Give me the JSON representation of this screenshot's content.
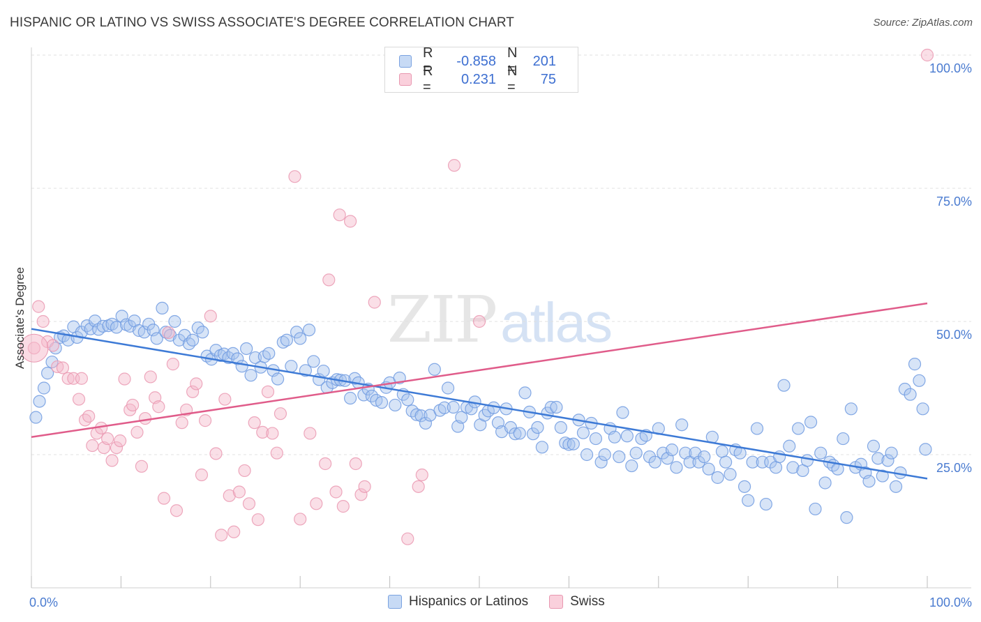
{
  "header": {
    "title": "HISPANIC OR LATINO VS SWISS ASSOCIATE'S DEGREE CORRELATION CHART",
    "source": "Source: ZipAtlas.com"
  },
  "watermark": {
    "zip": "ZIP",
    "atlas": "atlas"
  },
  "legend": {
    "rows": [
      {
        "r_label": "R =",
        "r_value": "-0.858",
        "n_label": "N =",
        "n_value": "201",
        "color": "#a7c4ee"
      },
      {
        "r_label": "R =",
        "r_value": "0.231",
        "n_label": "N =",
        "n_value": "75",
        "color": "#f5b8c9"
      }
    ]
  },
  "bottom_legend": {
    "series1": "Hispanics or Latinos",
    "series2": "Swiss"
  },
  "axes": {
    "ylabel": "Associate's Degree",
    "x_min_label": "0.0%",
    "x_max_label": "100.0%",
    "y_tick_labels": [
      "25.0%",
      "50.0%",
      "75.0%",
      "100.0%"
    ]
  },
  "colors": {
    "blue": "#3d7ad6",
    "blue_fill": "#a7c4ee",
    "pink": "#e05c8a",
    "pink_fill": "#f5b8c9",
    "grid": "#e0e0e0",
    "tick_text": "#4a7bd0"
  },
  "chart_data": {
    "type": "scatter",
    "xlim": [
      0,
      100
    ],
    "ylim": [
      0,
      100
    ],
    "grid": true,
    "legend_position": "top-center",
    "series": [
      {
        "name": "Hispanics or Latinos",
        "color": "#3d7ad6",
        "trend": {
          "x": [
            0,
            100
          ],
          "y": [
            48.6,
            20.5
          ]
        },
        "points": [
          [
            0.5,
            32.0
          ],
          [
            0.9,
            35.0
          ],
          [
            1.4,
            37.5
          ],
          [
            1.8,
            40.3
          ],
          [
            2.3,
            42.4
          ],
          [
            2.7,
            45.0
          ],
          [
            3.2,
            47.0
          ],
          [
            3.6,
            47.3
          ],
          [
            4.1,
            46.5
          ],
          [
            4.7,
            49.0
          ],
          [
            5.1,
            47.0
          ],
          [
            5.6,
            48.0
          ],
          [
            6.2,
            49.2
          ],
          [
            6.6,
            48.6
          ],
          [
            7.1,
            50.1
          ],
          [
            7.5,
            48.5
          ],
          [
            8.0,
            49.1
          ],
          [
            8.6,
            49.2
          ],
          [
            9.0,
            49.5
          ],
          [
            9.5,
            48.9
          ],
          [
            10.1,
            51.0
          ],
          [
            10.6,
            49.4
          ],
          [
            11.0,
            49.1
          ],
          [
            11.5,
            50.1
          ],
          [
            12.0,
            48.3
          ],
          [
            12.6,
            48.0
          ],
          [
            13.1,
            49.5
          ],
          [
            13.6,
            48.4
          ],
          [
            14.0,
            46.8
          ],
          [
            14.6,
            52.5
          ],
          [
            15.0,
            48.0
          ],
          [
            15.5,
            47.4
          ],
          [
            16.0,
            50.0
          ],
          [
            16.5,
            46.5
          ],
          [
            17.1,
            47.4
          ],
          [
            17.6,
            45.8
          ],
          [
            18.0,
            46.5
          ],
          [
            18.6,
            48.8
          ],
          [
            19.1,
            48.0
          ],
          [
            19.6,
            43.5
          ],
          [
            20.1,
            42.9
          ],
          [
            20.6,
            44.6
          ],
          [
            21.1,
            43.6
          ],
          [
            21.5,
            43.9
          ],
          [
            22.0,
            43.2
          ],
          [
            22.5,
            44.0
          ],
          [
            23.0,
            43.0
          ],
          [
            23.5,
            41.6
          ],
          [
            24.0,
            44.9
          ],
          [
            24.5,
            39.9
          ],
          [
            25.0,
            43.2
          ],
          [
            25.6,
            41.4
          ],
          [
            26.0,
            43.4
          ],
          [
            26.5,
            44.0
          ],
          [
            27.0,
            40.8
          ],
          [
            27.5,
            39.2
          ],
          [
            28.1,
            46.1
          ],
          [
            28.5,
            46.5
          ],
          [
            29.0,
            41.6
          ],
          [
            29.6,
            48.0
          ],
          [
            30.0,
            46.8
          ],
          [
            30.6,
            40.8
          ],
          [
            31.0,
            48.4
          ],
          [
            31.5,
            42.5
          ],
          [
            32.1,
            39.1
          ],
          [
            32.6,
            40.7
          ],
          [
            33.0,
            37.6
          ],
          [
            33.6,
            38.5
          ],
          [
            34.1,
            39.1
          ],
          [
            34.5,
            39.0
          ],
          [
            35.0,
            38.9
          ],
          [
            35.6,
            35.6
          ],
          [
            36.1,
            39.3
          ],
          [
            36.5,
            38.5
          ],
          [
            37.1,
            36.2
          ],
          [
            37.6,
            37.3
          ],
          [
            38.0,
            36.0
          ],
          [
            38.5,
            35.2
          ],
          [
            39.1,
            34.8
          ],
          [
            39.6,
            37.6
          ],
          [
            40.0,
            38.5
          ],
          [
            40.6,
            34.3
          ],
          [
            41.1,
            39.4
          ],
          [
            41.5,
            36.3
          ],
          [
            42.0,
            35.3
          ],
          [
            42.5,
            33.2
          ],
          [
            43.0,
            32.5
          ],
          [
            43.5,
            32.3
          ],
          [
            44.0,
            30.9
          ],
          [
            44.5,
            32.4
          ],
          [
            45.0,
            41.0
          ],
          [
            45.6,
            33.3
          ],
          [
            46.1,
            33.8
          ],
          [
            46.5,
            37.5
          ],
          [
            47.1,
            33.9
          ],
          [
            47.6,
            30.3
          ],
          [
            48.0,
            32.0
          ],
          [
            48.6,
            33.9
          ],
          [
            49.1,
            33.6
          ],
          [
            49.5,
            34.9
          ],
          [
            50.1,
            30.6
          ],
          [
            50.6,
            32.4
          ],
          [
            51.0,
            33.2
          ],
          [
            51.6,
            33.8
          ],
          [
            52.1,
            31.0
          ],
          [
            52.5,
            29.3
          ],
          [
            53.0,
            33.6
          ],
          [
            53.5,
            30.1
          ],
          [
            54.0,
            28.9
          ],
          [
            54.5,
            29.0
          ],
          [
            55.1,
            36.6
          ],
          [
            55.6,
            33.0
          ],
          [
            56.0,
            28.9
          ],
          [
            56.5,
            30.1
          ],
          [
            57.0,
            26.4
          ],
          [
            57.6,
            32.8
          ],
          [
            58.0,
            33.9
          ],
          [
            58.6,
            33.9
          ],
          [
            59.1,
            30.1
          ],
          [
            59.6,
            27.2
          ],
          [
            60.0,
            26.9
          ],
          [
            60.5,
            27.0
          ],
          [
            61.1,
            31.5
          ],
          [
            61.6,
            29.1
          ],
          [
            62.0,
            25.0
          ],
          [
            62.5,
            30.9
          ],
          [
            63.0,
            28.0
          ],
          [
            63.6,
            23.6
          ],
          [
            64.0,
            25.0
          ],
          [
            64.6,
            29.9
          ],
          [
            65.1,
            28.3
          ],
          [
            65.6,
            24.6
          ],
          [
            66.0,
            32.9
          ],
          [
            66.5,
            28.5
          ],
          [
            67.0,
            22.9
          ],
          [
            67.5,
            25.3
          ],
          [
            68.1,
            28.0
          ],
          [
            68.6,
            28.6
          ],
          [
            69.0,
            24.6
          ],
          [
            69.6,
            23.6
          ],
          [
            70.0,
            29.9
          ],
          [
            70.5,
            25.3
          ],
          [
            71.0,
            24.3
          ],
          [
            71.5,
            25.9
          ],
          [
            72.0,
            22.6
          ],
          [
            72.6,
            30.6
          ],
          [
            73.0,
            25.3
          ],
          [
            73.5,
            23.6
          ],
          [
            74.1,
            25.3
          ],
          [
            74.5,
            23.6
          ],
          [
            75.1,
            24.6
          ],
          [
            75.6,
            22.3
          ],
          [
            76.0,
            28.3
          ],
          [
            76.6,
            20.7
          ],
          [
            77.1,
            25.6
          ],
          [
            77.5,
            23.6
          ],
          [
            78.0,
            21.3
          ],
          [
            78.6,
            25.9
          ],
          [
            79.1,
            25.3
          ],
          [
            79.6,
            19.0
          ],
          [
            80.0,
            16.4
          ],
          [
            80.5,
            23.6
          ],
          [
            81.0,
            29.9
          ],
          [
            81.6,
            23.6
          ],
          [
            82.0,
            15.7
          ],
          [
            82.5,
            23.6
          ],
          [
            83.1,
            22.6
          ],
          [
            83.5,
            24.6
          ],
          [
            84.0,
            38.0
          ],
          [
            84.6,
            26.6
          ],
          [
            85.0,
            22.6
          ],
          [
            85.6,
            29.9
          ],
          [
            86.1,
            22.0
          ],
          [
            86.6,
            23.9
          ],
          [
            87.0,
            31.1
          ],
          [
            87.5,
            14.8
          ],
          [
            88.1,
            25.3
          ],
          [
            88.6,
            19.7
          ],
          [
            89.1,
            23.6
          ],
          [
            89.5,
            23.0
          ],
          [
            90.0,
            22.3
          ],
          [
            90.6,
            28.0
          ],
          [
            91.0,
            13.2
          ],
          [
            91.5,
            33.6
          ],
          [
            92.0,
            22.6
          ],
          [
            92.6,
            23.2
          ],
          [
            93.1,
            21.6
          ],
          [
            93.5,
            20.0
          ],
          [
            94.0,
            26.6
          ],
          [
            94.5,
            24.3
          ],
          [
            95.0,
            21.0
          ],
          [
            95.6,
            23.9
          ],
          [
            96.0,
            25.3
          ],
          [
            96.5,
            19.0
          ],
          [
            97.0,
            21.6
          ],
          [
            97.5,
            37.3
          ],
          [
            98.1,
            36.3
          ],
          [
            98.6,
            42.0
          ],
          [
            99.1,
            38.9
          ],
          [
            99.5,
            33.6
          ],
          [
            99.8,
            26.0
          ]
        ]
      },
      {
        "name": "Swiss",
        "color": "#e05c8a",
        "trend": {
          "x": [
            0,
            100
          ],
          "y": [
            28.3,
            53.4
          ]
        },
        "points": [
          [
            0.3,
            45.0
          ],
          [
            0.8,
            52.8
          ],
          [
            1.3,
            50.0
          ],
          [
            1.8,
            46.2
          ],
          [
            2.4,
            45.5
          ],
          [
            2.9,
            41.5
          ],
          [
            3.5,
            41.3
          ],
          [
            4.1,
            39.3
          ],
          [
            4.7,
            39.3
          ],
          [
            5.3,
            35.4
          ],
          [
            5.6,
            39.3
          ],
          [
            6.0,
            31.5
          ],
          [
            6.4,
            32.2
          ],
          [
            6.8,
            26.7
          ],
          [
            7.3,
            29.0
          ],
          [
            7.8,
            30.0
          ],
          [
            8.1,
            26.3
          ],
          [
            8.5,
            28.0
          ],
          [
            9.0,
            23.9
          ],
          [
            9.5,
            26.3
          ],
          [
            9.9,
            27.6
          ],
          [
            10.4,
            39.2
          ],
          [
            11.0,
            33.4
          ],
          [
            11.3,
            34.3
          ],
          [
            11.8,
            29.2
          ],
          [
            12.3,
            22.8
          ],
          [
            12.7,
            31.8
          ],
          [
            13.3,
            39.6
          ],
          [
            13.8,
            35.7
          ],
          [
            14.2,
            34.0
          ],
          [
            14.8,
            16.8
          ],
          [
            15.3,
            47.9
          ],
          [
            15.8,
            42.0
          ],
          [
            16.2,
            14.5
          ],
          [
            16.8,
            31.0
          ],
          [
            17.3,
            33.4
          ],
          [
            18.0,
            36.8
          ],
          [
            18.4,
            38.3
          ],
          [
            19.0,
            21.2
          ],
          [
            19.4,
            31.4
          ],
          [
            20.0,
            51.0
          ],
          [
            20.6,
            25.2
          ],
          [
            21.2,
            9.9
          ],
          [
            21.6,
            35.4
          ],
          [
            22.1,
            17.3
          ],
          [
            22.6,
            10.5
          ],
          [
            23.2,
            18.0
          ],
          [
            23.8,
            22.0
          ],
          [
            24.3,
            15.8
          ],
          [
            24.9,
            31.0
          ],
          [
            25.3,
            12.8
          ],
          [
            25.8,
            29.2
          ],
          [
            26.4,
            36.8
          ],
          [
            26.9,
            29.0
          ],
          [
            27.4,
            25.3
          ],
          [
            27.8,
            32.7
          ],
          [
            29.4,
            77.2
          ],
          [
            30.0,
            12.9
          ],
          [
            31.1,
            29.0
          ],
          [
            31.8,
            15.8
          ],
          [
            32.8,
            23.3
          ],
          [
            34.0,
            18.0
          ],
          [
            34.4,
            70.0
          ],
          [
            34.8,
            15.3
          ],
          [
            35.6,
            68.8
          ],
          [
            36.8,
            17.5
          ],
          [
            37.2,
            19.0
          ],
          [
            38.3,
            53.6
          ],
          [
            42.0,
            9.2
          ],
          [
            43.2,
            19.0
          ],
          [
            43.6,
            21.2
          ],
          [
            47.2,
            79.3
          ],
          [
            50.0,
            50.0
          ],
          [
            33.2,
            57.8
          ],
          [
            36.2,
            23.3
          ],
          [
            100.0,
            100.0
          ]
        ]
      }
    ]
  }
}
